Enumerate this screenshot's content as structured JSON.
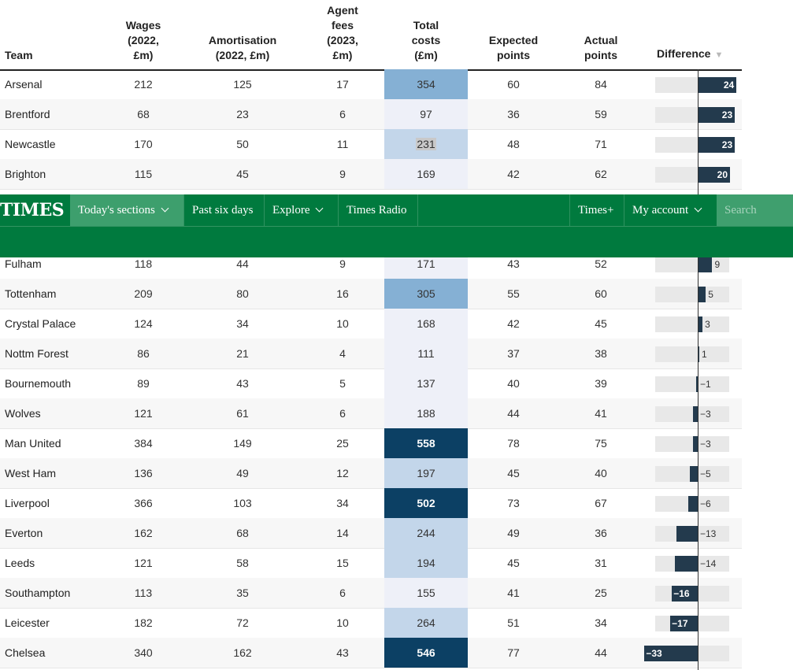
{
  "headers": {
    "team": "Team",
    "wages": [
      "Wages",
      "(2022,",
      "£m)"
    ],
    "amortisation": [
      "Amortisation",
      "(2022, £m)"
    ],
    "agent_fees": [
      "Agent",
      "fees",
      "(2023,",
      "£m)"
    ],
    "total_costs": [
      "Total",
      "costs",
      "(£m)"
    ],
    "expected_points": [
      "Expected",
      "points"
    ],
    "actual_points": [
      "Actual",
      "points"
    ],
    "difference": "Difference",
    "sort_indicator": "▼"
  },
  "rows": [
    {
      "team": "Arsenal",
      "wages": "212",
      "amortisation": "125",
      "agent_fees": "17",
      "total": "354",
      "expected": "60",
      "actual": "84",
      "difference": "24"
    },
    {
      "team": "Brentford",
      "wages": "68",
      "amortisation": "23",
      "agent_fees": "6",
      "total": "97",
      "expected": "36",
      "actual": "59",
      "difference": "23"
    },
    {
      "team": "Newcastle",
      "wages": "170",
      "amortisation": "50",
      "agent_fees": "11",
      "total": "231",
      "expected": "48",
      "actual": "71",
      "difference": "23"
    },
    {
      "team": "Brighton",
      "wages": "115",
      "amortisation": "45",
      "agent_fees": "9",
      "total": "169",
      "expected": "42",
      "actual": "62",
      "difference": "20"
    },
    {
      "team": "Fulham",
      "wages": "118",
      "amortisation": "44",
      "agent_fees": "9",
      "total": "171",
      "expected": "43",
      "actual": "52",
      "difference": "9"
    },
    {
      "team": "Tottenham",
      "wages": "209",
      "amortisation": "80",
      "agent_fees": "16",
      "total": "305",
      "expected": "55",
      "actual": "60",
      "difference": "5"
    },
    {
      "team": "Crystal Palace",
      "wages": "124",
      "amortisation": "34",
      "agent_fees": "10",
      "total": "168",
      "expected": "42",
      "actual": "45",
      "difference": "3"
    },
    {
      "team": "Nottm Forest",
      "wages": "86",
      "amortisation": "21",
      "agent_fees": "4",
      "total": "111",
      "expected": "37",
      "actual": "38",
      "difference": "1"
    },
    {
      "team": "Bournemouth",
      "wages": "89",
      "amortisation": "43",
      "agent_fees": "5",
      "total": "137",
      "expected": "40",
      "actual": "39",
      "difference": "-1"
    },
    {
      "team": "Wolves",
      "wages": "121",
      "amortisation": "61",
      "agent_fees": "6",
      "total": "188",
      "expected": "44",
      "actual": "41",
      "difference": "-3"
    },
    {
      "team": "Man United",
      "wages": "384",
      "amortisation": "149",
      "agent_fees": "25",
      "total": "558",
      "expected": "78",
      "actual": "75",
      "difference": "-3"
    },
    {
      "team": "West Ham",
      "wages": "136",
      "amortisation": "49",
      "agent_fees": "12",
      "total": "197",
      "expected": "45",
      "actual": "40",
      "difference": "-5"
    },
    {
      "team": "Liverpool",
      "wages": "366",
      "amortisation": "103",
      "agent_fees": "34",
      "total": "502",
      "expected": "73",
      "actual": "67",
      "difference": "-6"
    },
    {
      "team": "Everton",
      "wages": "162",
      "amortisation": "68",
      "agent_fees": "14",
      "total": "244",
      "expected": "49",
      "actual": "36",
      "difference": "-13"
    },
    {
      "team": "Leeds",
      "wages": "121",
      "amortisation": "58",
      "agent_fees": "15",
      "total": "194",
      "expected": "45",
      "actual": "31",
      "difference": "-14"
    },
    {
      "team": "Southampton",
      "wages": "113",
      "amortisation": "35",
      "agent_fees": "6",
      "total": "155",
      "expected": "41",
      "actual": "25",
      "difference": "-16"
    },
    {
      "team": "Leicester",
      "wages": "182",
      "amortisation": "72",
      "agent_fees": "10",
      "total": "264",
      "expected": "51",
      "actual": "34",
      "difference": "-17"
    },
    {
      "team": "Chelsea",
      "wages": "340",
      "amortisation": "162",
      "agent_fees": "43",
      "total": "546",
      "expected": "77",
      "actual": "44",
      "difference": "-33"
    }
  ],
  "colors": {
    "total_scale": [
      "#eef0f8",
      "#c3d6ea",
      "#85b0d4",
      "#0c4064"
    ],
    "bar": "#233a4d",
    "track": "#e8e8e8",
    "nav_bg": "#007a3e",
    "nav_active": "#3d9f6d",
    "selected_text_bg": "#c9c9c9"
  },
  "nav": {
    "logo": "TIMES",
    "items": [
      {
        "label": "Today's sections",
        "dropdown": true,
        "active": true
      },
      {
        "label": "Past six days",
        "dropdown": false
      },
      {
        "label": "Explore",
        "dropdown": true
      },
      {
        "label": "Times Radio",
        "dropdown": false
      }
    ],
    "right_items": [
      {
        "label": "Times+",
        "dropdown": false
      },
      {
        "label": "My account",
        "dropdown": true
      }
    ],
    "search_placeholder": "Search"
  }
}
